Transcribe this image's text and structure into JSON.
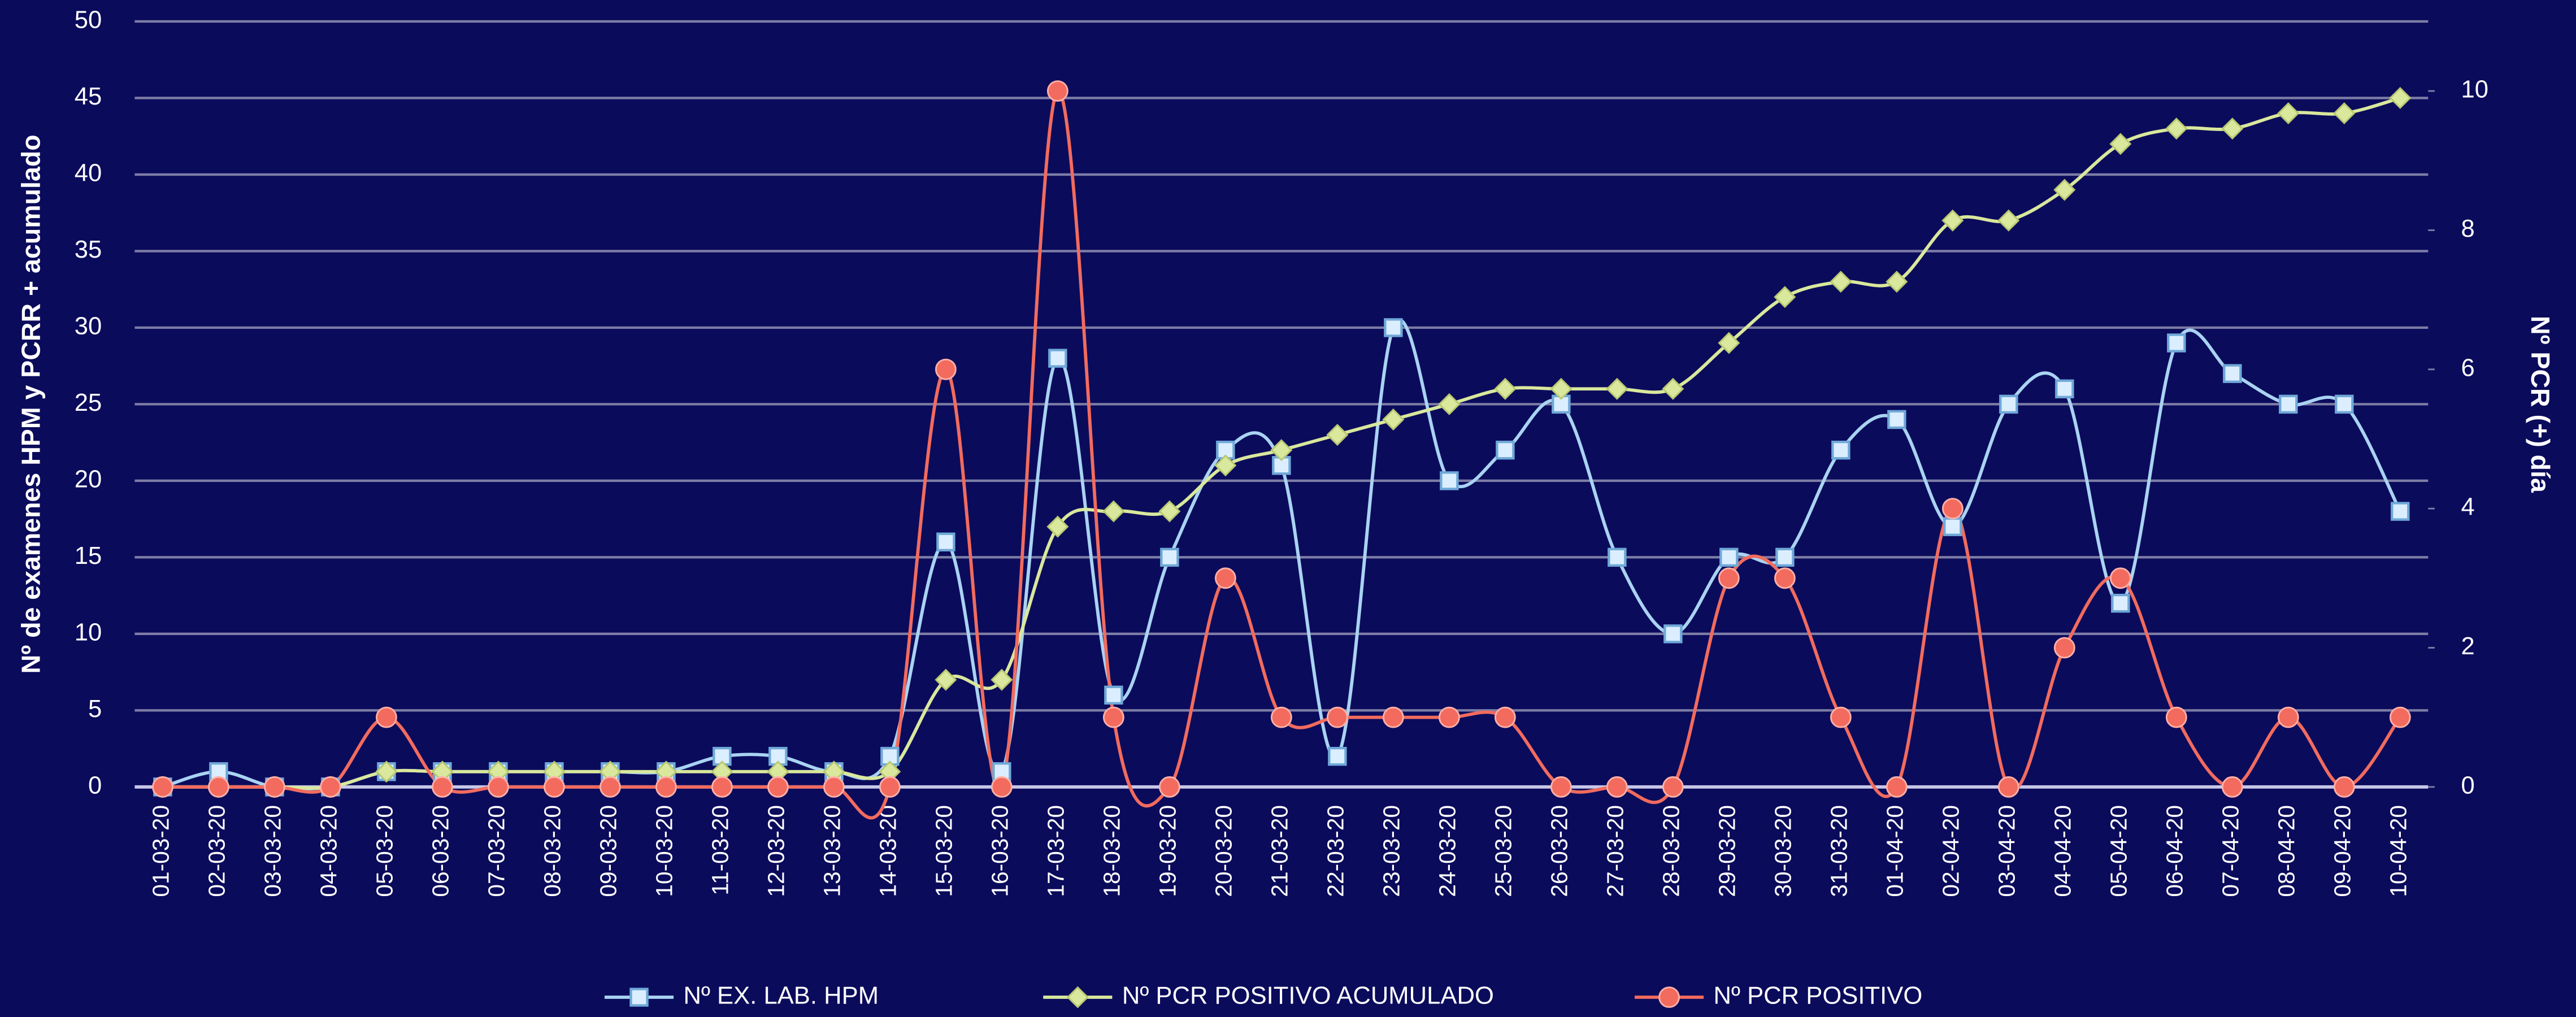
{
  "chart_data": {
    "type": "line",
    "ylabel": "Nº de examenes HPM y PCRR + acumulado",
    "y2label": "Nº PCR (+) día",
    "categories": [
      "01-03-20",
      "02-03-20",
      "03-03-20",
      "04-03-20",
      "05-03-20",
      "06-03-20",
      "07-03-20",
      "08-03-20",
      "09-03-20",
      "10-03-20",
      "11-03-20",
      "12-03-20",
      "13-03-20",
      "14-03-20",
      "15-03-20",
      "16-03-20",
      "17-03-20",
      "18-03-20",
      "19-03-20",
      "20-03-20",
      "21-03-20",
      "22-03-20",
      "23-03-20",
      "24-03-20",
      "25-03-20",
      "26-03-20",
      "27-03-20",
      "28-03-20",
      "29-03-20",
      "30-03-20",
      "31-03-20",
      "01-04-20",
      "02-04-20",
      "03-04-20",
      "04-04-20",
      "05-04-20",
      "06-04-20",
      "07-04-20",
      "08-04-20",
      "09-04-20",
      "10-04-20"
    ],
    "series": [
      {
        "name": "Nº EX. LAB. HPM",
        "color": "#a9d3f2",
        "marker": "square",
        "values": [
          0,
          1,
          0,
          0,
          1,
          1,
          1,
          1,
          1,
          1,
          2,
          2,
          1,
          2,
          16,
          1,
          28,
          6,
          15,
          22,
          21,
          2,
          30,
          20,
          22,
          25,
          15,
          10,
          15,
          15,
          22,
          24,
          17,
          25,
          26,
          12,
          29,
          27,
          25,
          25,
          18
        ]
      },
      {
        "name": "Nº PCR POSITIVO ACUMULADO",
        "color": "#d9e89c",
        "marker": "diamond",
        "values": [
          0,
          0,
          0,
          0,
          1,
          1,
          1,
          1,
          1,
          1,
          1,
          1,
          1,
          1,
          7,
          7,
          17,
          18,
          18,
          21,
          22,
          23,
          24,
          25,
          26,
          26,
          26,
          26,
          29,
          32,
          33,
          33,
          37,
          37,
          39,
          42,
          43,
          43,
          44,
          44,
          45
        ]
      },
      {
        "name": "Nº PCR POSITIVO",
        "color": "#f26b5e",
        "marker": "circle",
        "axis": "y2",
        "values": [
          0,
          0,
          0,
          0,
          1,
          0,
          0,
          0,
          0,
          0,
          0,
          0,
          0,
          0,
          6,
          0,
          10,
          1,
          0,
          3,
          1,
          1,
          1,
          1,
          1,
          0,
          0,
          0,
          3,
          3,
          1,
          0,
          4,
          0,
          2,
          3,
          1,
          0,
          1,
          0,
          1
        ]
      }
    ],
    "ylim": [
      0,
      50
    ],
    "yticks": [
      0,
      5,
      10,
      15,
      20,
      25,
      30,
      35,
      40,
      45,
      50
    ],
    "y2lim": [
      0,
      11
    ],
    "y2ticks": [
      0,
      2,
      4,
      6,
      8,
      10
    ],
    "grid": true,
    "smooth": true,
    "legend": "bottom"
  }
}
